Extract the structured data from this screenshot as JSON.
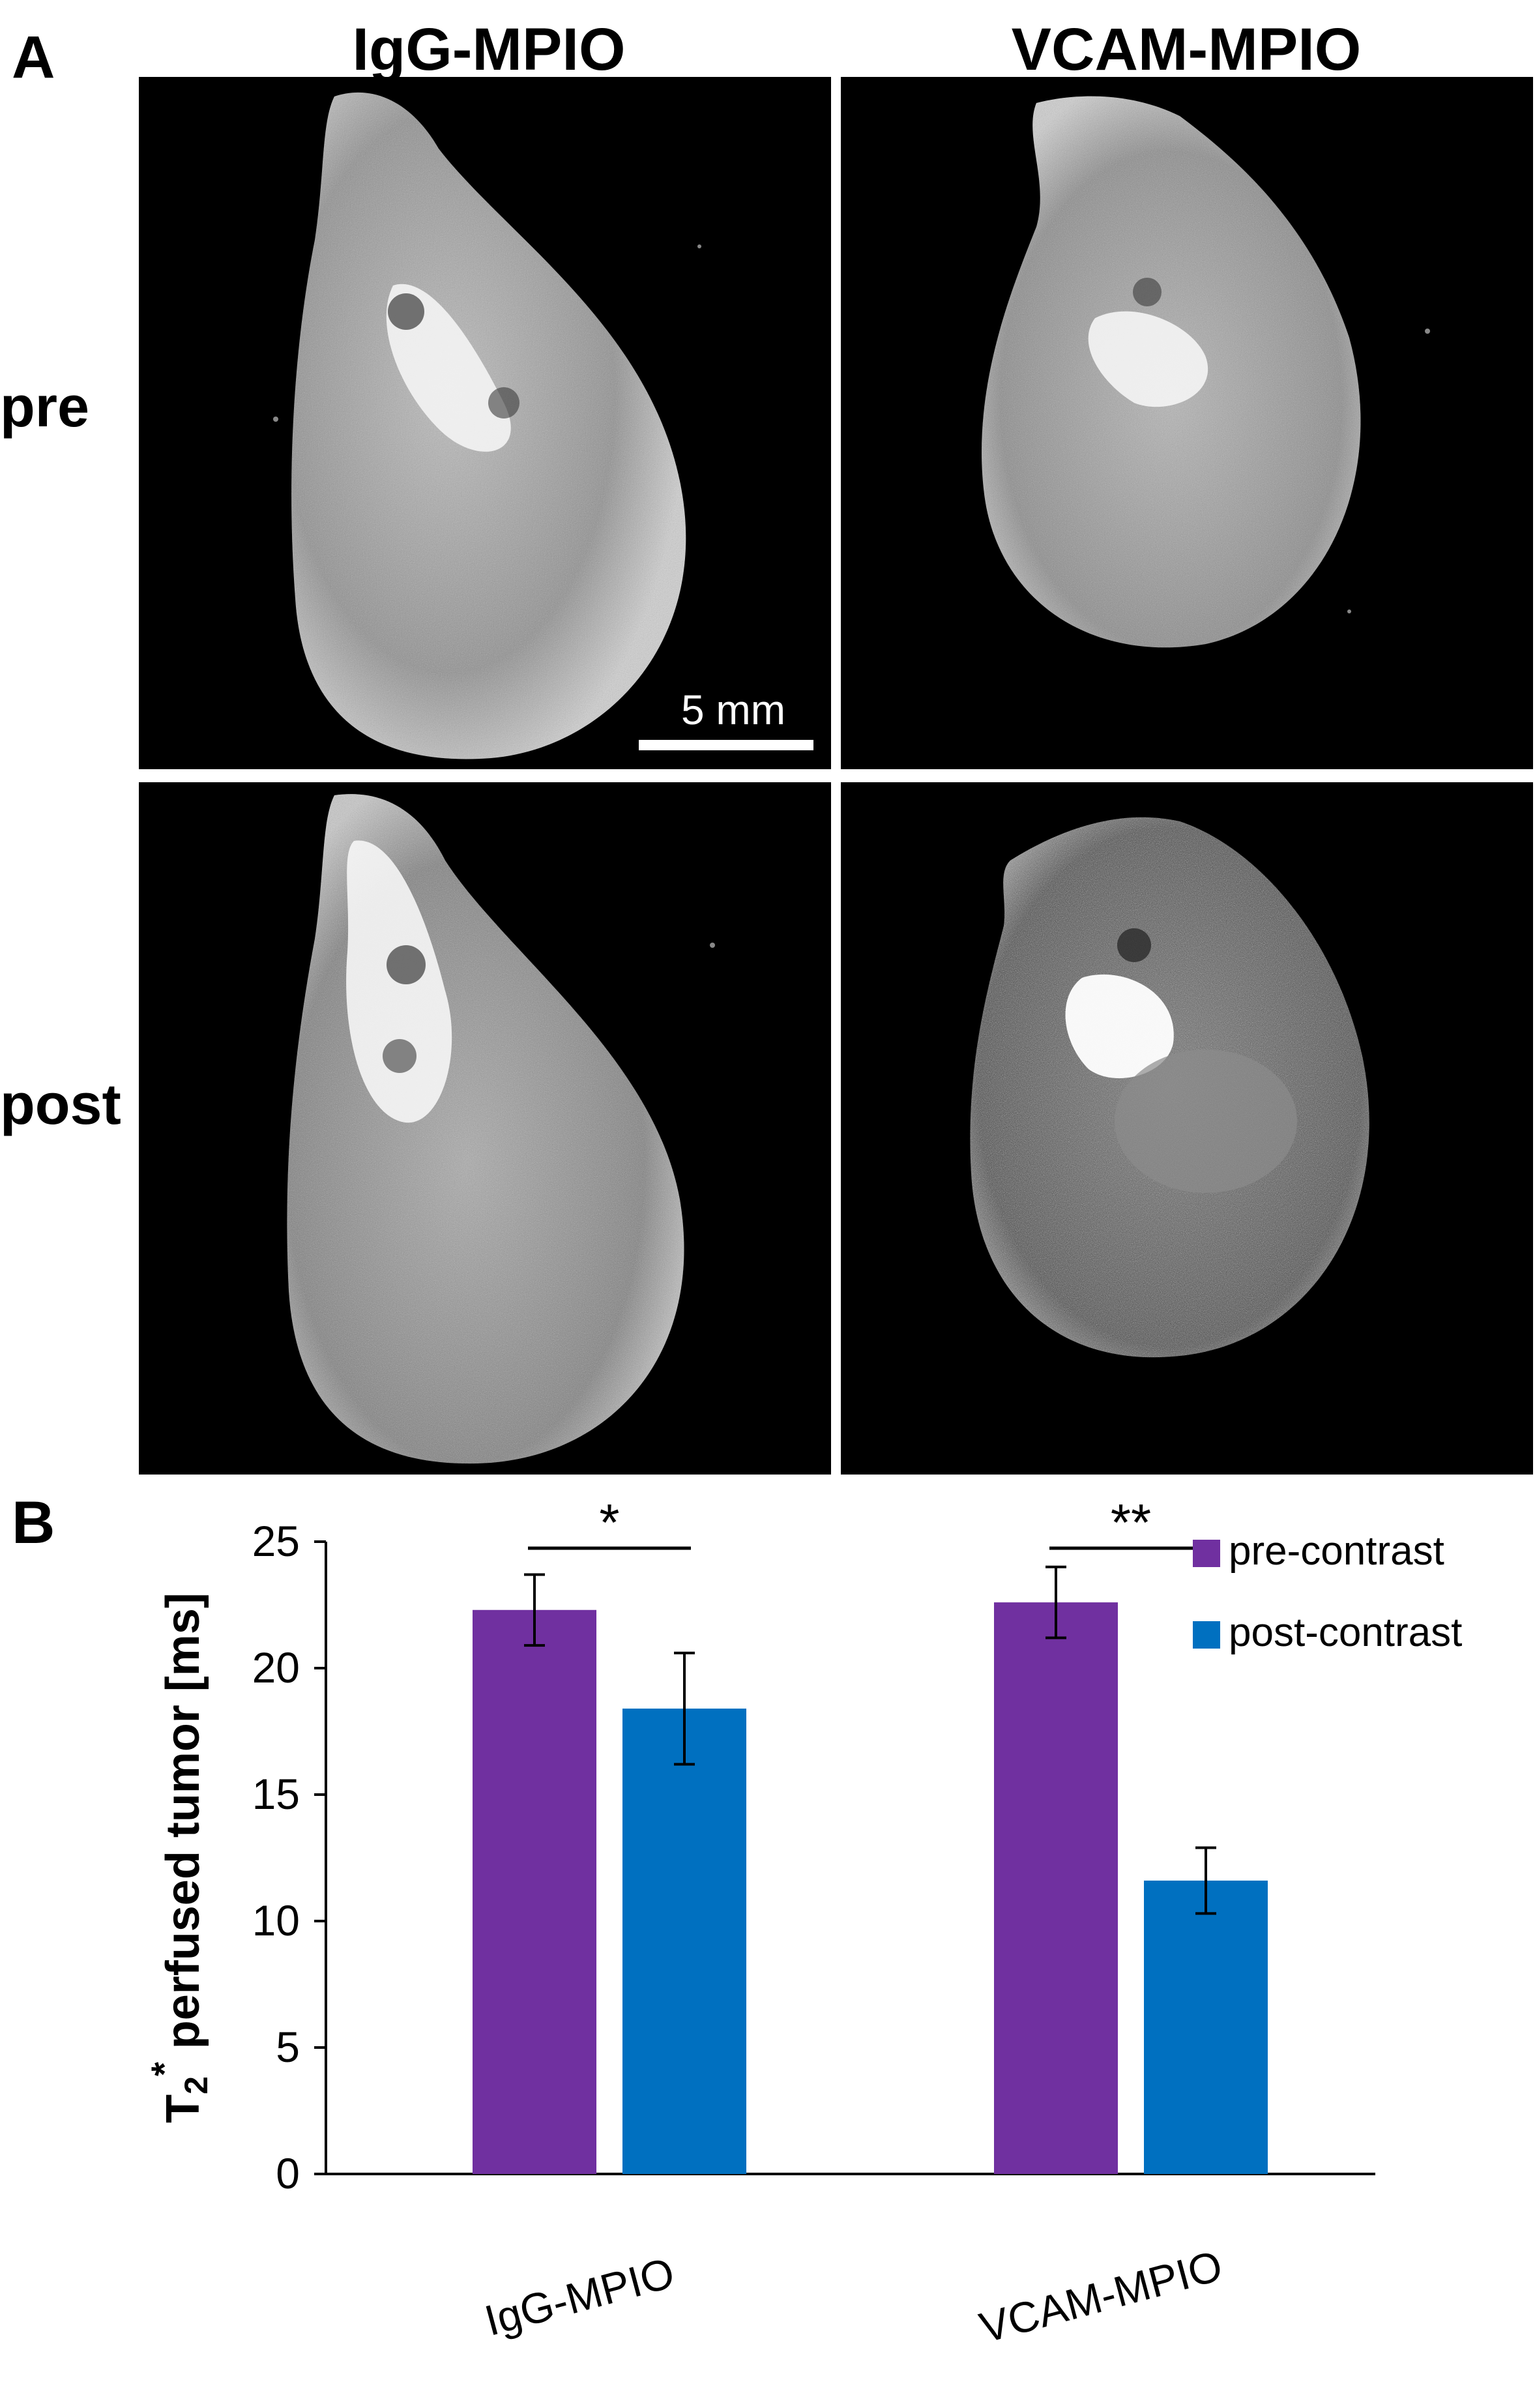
{
  "panel_a": {
    "letter": "A",
    "columns": [
      "IgG-MPIO",
      "VCAM-MPIO"
    ],
    "rows": [
      "pre",
      "post"
    ],
    "scale_bar_label": "5 mm"
  },
  "panel_b": {
    "letter": "B"
  },
  "chart_data": {
    "type": "bar",
    "categories": [
      "IgG-MPIO",
      "VCAM-MPIO"
    ],
    "series": [
      {
        "name": "pre-contrast",
        "color": "#7030a0",
        "values": [
          22.3,
          22.6
        ],
        "errors": [
          1.4,
          1.4
        ]
      },
      {
        "name": "post-contrast",
        "color": "#0070c0",
        "values": [
          18.4,
          11.6
        ],
        "errors": [
          2.2,
          1.3
        ]
      }
    ],
    "significance": [
      "*",
      "**"
    ],
    "ylabel": "T2* perfused tumor [ms]",
    "ylabel_parts": {
      "main": "T",
      "sub": "2",
      "sup": "*",
      "rest": "  perfused tumor [ms]"
    },
    "ylim": [
      0,
      25
    ],
    "yticks": [
      "0",
      "5",
      "10",
      "15",
      "20",
      "25"
    ],
    "grid": false,
    "legend_position": "top-right"
  }
}
